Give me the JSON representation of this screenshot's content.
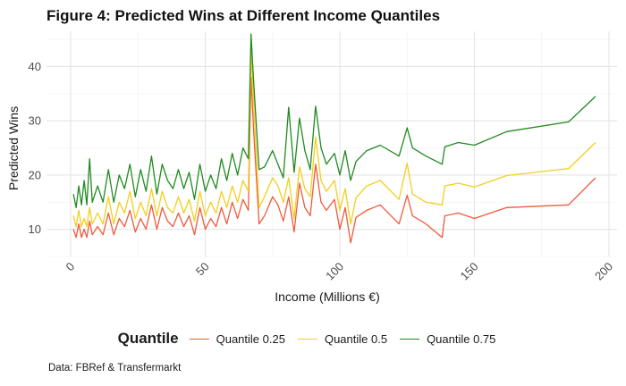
{
  "chart_data": {
    "type": "line",
    "title": "Figure 4: Predicted Wins at Different Income Quantiles",
    "xlabel": "Income (Millions €)",
    "ylabel": "Predicted Wins",
    "xlim": [
      -9,
      203
    ],
    "ylim": [
      5,
      46.5
    ],
    "xticks": [
      0,
      50,
      100,
      150,
      200
    ],
    "yticks": [
      10,
      20,
      30,
      40
    ],
    "grid": true,
    "legend": {
      "title": "Quantile",
      "placement": "bottom"
    },
    "colors": {
      "q25": "#f05a3c",
      "q50": "#f2cf1d",
      "q75": "#208a20"
    },
    "series": [
      {
        "name": "Quantile 0.25",
        "x": [
          1,
          2,
          3,
          4,
          5,
          6,
          7,
          8,
          10,
          12,
          14,
          16,
          18,
          20,
          22,
          24,
          26,
          28,
          30,
          32,
          34,
          36,
          38,
          40,
          42,
          44,
          46,
          48,
          50,
          52,
          54,
          56,
          58,
          60,
          62,
          64,
          66,
          67,
          68,
          70,
          72,
          75,
          77,
          79,
          81,
          83,
          85,
          87,
          89,
          91,
          93,
          95,
          98,
          100,
          102,
          104,
          106,
          110,
          115,
          122,
          125,
          127,
          132,
          138,
          139,
          144,
          150,
          162,
          185,
          195
        ],
        "y": [
          10,
          8.5,
          11,
          8.5,
          10,
          8.5,
          11.5,
          9,
          10.5,
          9,
          13,
          9,
          12,
          10.5,
          13.5,
          9.5,
          12,
          10,
          14.5,
          10,
          14,
          11.5,
          10.5,
          13,
          10.5,
          12.5,
          9,
          14,
          10,
          12,
          10.5,
          14,
          11,
          15,
          12,
          15.5,
          13.5,
          38,
          28,
          11,
          12.5,
          16,
          14.5,
          11.5,
          16,
          9.5,
          18.5,
          14,
          12.5,
          22,
          15,
          13.5,
          15.5,
          10,
          14,
          7.5,
          12.2,
          13.5,
          14.5,
          11,
          16.3,
          12.5,
          11,
          8.5,
          12.5,
          13,
          12,
          14,
          14.5,
          19.5
        ]
      },
      {
        "name": "Quantile 0.5",
        "x": [
          1,
          2,
          3,
          4,
          5,
          6,
          7,
          8,
          10,
          12,
          14,
          16,
          18,
          20,
          22,
          24,
          26,
          28,
          30,
          32,
          34,
          36,
          38,
          40,
          42,
          44,
          46,
          48,
          50,
          52,
          54,
          56,
          58,
          60,
          62,
          64,
          66,
          67,
          68,
          70,
          72,
          75,
          77,
          79,
          81,
          83,
          85,
          87,
          89,
          91,
          93,
          95,
          98,
          100,
          102,
          104,
          106,
          110,
          115,
          122,
          125,
          127,
          132,
          138,
          139,
          144,
          150,
          162,
          185,
          195
        ],
        "y": [
          12.5,
          10.5,
          13.5,
          10.5,
          12,
          10.5,
          14,
          11,
          13,
          11,
          16,
          11,
          15,
          13,
          17,
          12,
          15,
          12.5,
          17.5,
          12.5,
          17,
          14,
          13,
          16,
          13,
          15.5,
          11.5,
          17,
          12.5,
          15,
          13,
          17,
          14,
          18,
          15,
          19,
          17,
          43,
          33,
          14,
          16,
          19.5,
          18,
          15,
          19.5,
          12,
          21.5,
          17.5,
          16,
          27,
          19,
          17,
          19,
          13.5,
          17.5,
          11,
          15.8,
          18,
          19,
          15.5,
          22.2,
          16.5,
          15,
          14.5,
          18,
          18.5,
          17.8,
          19.9,
          21.2,
          26
        ]
      },
      {
        "name": "Quantile 0.75",
        "x": [
          1,
          2,
          3,
          4,
          5,
          6,
          7,
          8,
          10,
          12,
          14,
          16,
          18,
          20,
          22,
          24,
          26,
          28,
          30,
          32,
          34,
          36,
          38,
          40,
          42,
          44,
          46,
          48,
          50,
          52,
          54,
          56,
          58,
          60,
          62,
          64,
          66,
          67,
          68,
          70,
          72,
          75,
          77,
          79,
          81,
          83,
          85,
          87,
          89,
          91,
          93,
          95,
          98,
          100,
          102,
          104,
          106,
          110,
          115,
          122,
          125,
          127,
          132,
          138,
          139,
          144,
          150,
          162,
          185,
          195
        ],
        "y": [
          16.5,
          14,
          18,
          14.5,
          19,
          14.5,
          23,
          15,
          18,
          15,
          21,
          15,
          20,
          17.5,
          22,
          16,
          21,
          17,
          23.5,
          16.5,
          22,
          19,
          17.5,
          21,
          17.5,
          20.5,
          15.5,
          22,
          17,
          20,
          17.5,
          23,
          19,
          24,
          20,
          25,
          23,
          46,
          37,
          21,
          21.5,
          24.5,
          22,
          19.5,
          32.5,
          20.5,
          30.5,
          24.5,
          21,
          32.7,
          25,
          22,
          24,
          20,
          24.5,
          19,
          22.5,
          24.5,
          25.5,
          23.5,
          28.7,
          25,
          23.5,
          22,
          25.2,
          26,
          25.5,
          28,
          29.8,
          34.5
        ]
      }
    ]
  },
  "caption": "Data: FBRef & Transfermarkt"
}
